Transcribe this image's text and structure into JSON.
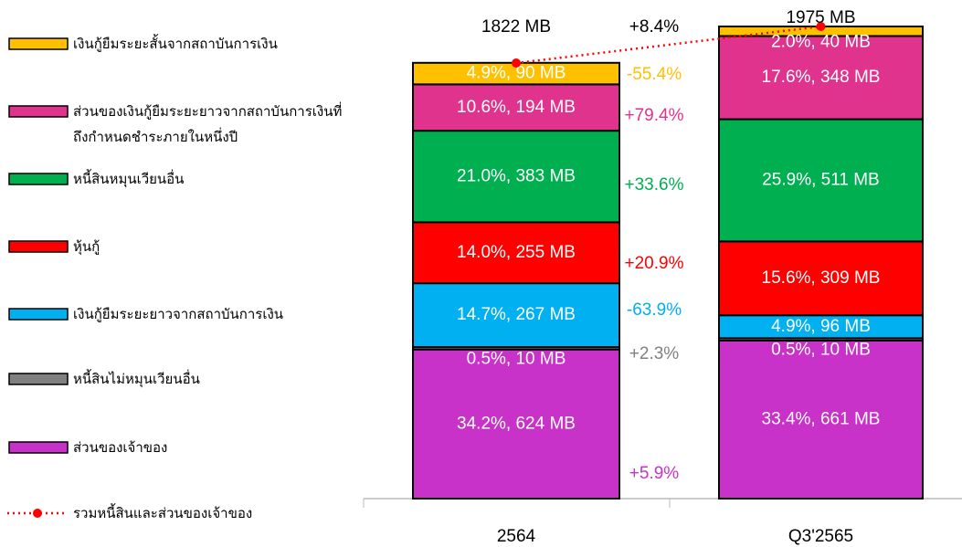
{
  "chart_data": {
    "type": "stacked_bar",
    "categories": [
      "2564",
      "Q3'2565"
    ],
    "series": [
      {
        "name": "ส่วนของเจ้าของ",
        "color": "#c832c8",
        "values": [
          624,
          661
        ],
        "value_labels": [
          "34.2%, 624 MB",
          "33.4%, 661 MB"
        ],
        "change": 5.9,
        "change_label": "+5.9%"
      },
      {
        "name": "หนี้สินไม่หมุนเวียนอื่น",
        "color": "#808080",
        "values": [
          10,
          10
        ],
        "value_labels": [
          "0.5%, 10 MB",
          "0.5%, 10 MB"
        ],
        "change": 2.3,
        "change_label": "+2.3%"
      },
      {
        "name": "เงินกู้ยืมระยะยาวจากสถาบันการเงิน",
        "color": "#00b0f0",
        "values": [
          267,
          96
        ],
        "value_labels": [
          "14.7%, 267 MB",
          "4.9%, 96 MB"
        ],
        "change": -63.9,
        "change_label": "-63.9%"
      },
      {
        "name": "หุ้นกู้",
        "color": "#ff0000",
        "values": [
          255,
          309
        ],
        "value_labels": [
          "14.0%, 255 MB",
          "15.6%, 309 MB"
        ],
        "change": 20.9,
        "change_label": "+20.9%"
      },
      {
        "name": "หนี้สินหมุนเวียนอื่น",
        "color": "#00b050",
        "values": [
          383,
          511
        ],
        "value_labels": [
          "21.0%, 383 MB",
          "25.9%, 511 MB"
        ],
        "change": 33.6,
        "change_label": "+33.6%"
      },
      {
        "name": "ส่วนของเงินกู้ยืมระยะยาวจากสถาบันการเงินที่ถึงกำหนดชำระภายในหนึ่งปี",
        "color": "#e0338e",
        "values": [
          194,
          348
        ],
        "value_labels": [
          "10.6%, 194 MB",
          "17.6%, 348 MB"
        ],
        "change": 79.4,
        "change_label": "+79.4%"
      },
      {
        "name": "เงินกู้ยืมระยะสั้นจากสถาบันการเงิน",
        "color": "#ffc000",
        "values": [
          90,
          40
        ],
        "value_labels": [
          "4.9%, 90 MB",
          "2.0%, 40 MB"
        ],
        "change": -55.4,
        "change_label": "-55.4%"
      }
    ],
    "total": {
      "name": "รวมหนี้สินและส่วนของเจ้าของ",
      "color": "#ff0000",
      "values": [
        1822,
        1975
      ],
      "value_labels": [
        "1822 MB",
        "1975 MB"
      ],
      "change": 8.4,
      "change_label": "+8.4%"
    }
  }
}
